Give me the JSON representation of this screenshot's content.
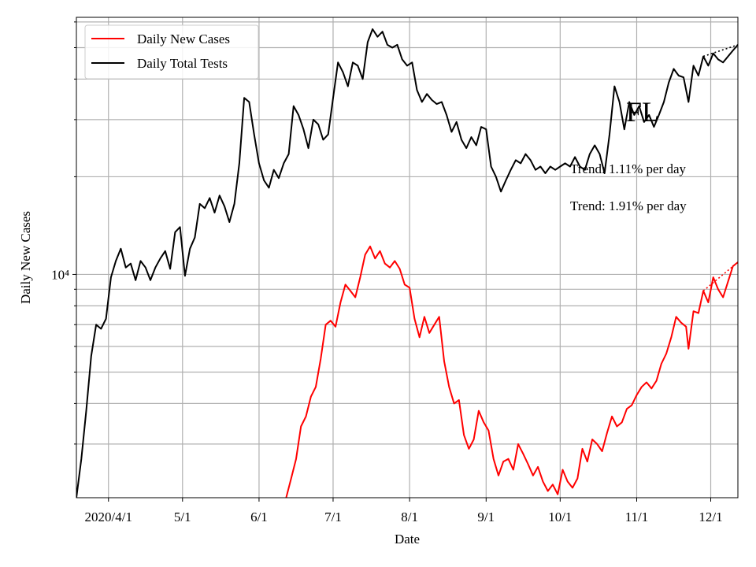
{
  "chart_data": {
    "type": "line",
    "title": "",
    "xlabel": "Date",
    "ylabel": "Daily New Cases",
    "y_scale": "log",
    "y_tick_label": "10⁴",
    "y_tick_value": 10000,
    "xlim": [
      "2020-03-19",
      "2020-12-12"
    ],
    "ylim": [
      2050,
      62000
    ],
    "grid": true,
    "x_ticks": [
      {
        "date": "2020-04-01",
        "label": "2020/4/1"
      },
      {
        "date": "2020-05-01",
        "label": "5/1"
      },
      {
        "date": "2020-06-01",
        "label": "6/1"
      },
      {
        "date": "2020-07-01",
        "label": "7/1"
      },
      {
        "date": "2020-08-01",
        "label": "8/1"
      },
      {
        "date": "2020-09-01",
        "label": "9/1"
      },
      {
        "date": "2020-10-01",
        "label": "10/1"
      },
      {
        "date": "2020-11-01",
        "label": "11/1"
      },
      {
        "date": "2020-12-01",
        "label": "12/1"
      }
    ],
    "legend_position": "top-left",
    "annotations": {
      "state": "FL",
      "trend_tests": "Trend: 1.11% per day",
      "trend_cases": "Trend: 1.91% per day"
    },
    "series": [
      {
        "name": "Daily New Cases",
        "color": "#ff0000",
        "points": [
          [
            "2020-06-12",
            2050
          ],
          [
            "2020-06-14",
            2350
          ],
          [
            "2020-06-16",
            2700
          ],
          [
            "2020-06-18",
            3400
          ],
          [
            "2020-06-20",
            3650
          ],
          [
            "2020-06-22",
            4200
          ],
          [
            "2020-06-24",
            4500
          ],
          [
            "2020-06-26",
            5500
          ],
          [
            "2020-06-28",
            7000
          ],
          [
            "2020-06-30",
            7200
          ],
          [
            "2020-07-02",
            6900
          ],
          [
            "2020-07-04",
            8200
          ],
          [
            "2020-07-06",
            9300
          ],
          [
            "2020-07-08",
            8900
          ],
          [
            "2020-07-10",
            8500
          ],
          [
            "2020-07-12",
            9800
          ],
          [
            "2020-07-14",
            11500
          ],
          [
            "2020-07-16",
            12200
          ],
          [
            "2020-07-18",
            11200
          ],
          [
            "2020-07-20",
            11800
          ],
          [
            "2020-07-22",
            10800
          ],
          [
            "2020-07-24",
            10500
          ],
          [
            "2020-07-26",
            11000
          ],
          [
            "2020-07-28",
            10400
          ],
          [
            "2020-07-30",
            9300
          ],
          [
            "2020-08-01",
            9100
          ],
          [
            "2020-08-03",
            7300
          ],
          [
            "2020-08-05",
            6400
          ],
          [
            "2020-08-07",
            7400
          ],
          [
            "2020-08-09",
            6600
          ],
          [
            "2020-08-11",
            7000
          ],
          [
            "2020-08-13",
            7400
          ],
          [
            "2020-08-15",
            5400
          ],
          [
            "2020-08-17",
            4500
          ],
          [
            "2020-08-19",
            4000
          ],
          [
            "2020-08-21",
            4100
          ],
          [
            "2020-08-23",
            3200
          ],
          [
            "2020-08-25",
            2900
          ],
          [
            "2020-08-27",
            3100
          ],
          [
            "2020-08-29",
            3800
          ],
          [
            "2020-08-31",
            3500
          ],
          [
            "2020-09-02",
            3300
          ],
          [
            "2020-09-04",
            2700
          ],
          [
            "2020-09-06",
            2400
          ],
          [
            "2020-09-08",
            2650
          ],
          [
            "2020-09-10",
            2700
          ],
          [
            "2020-09-12",
            2500
          ],
          [
            "2020-09-14",
            3000
          ],
          [
            "2020-09-16",
            2800
          ],
          [
            "2020-09-18",
            2600
          ],
          [
            "2020-09-20",
            2400
          ],
          [
            "2020-09-22",
            2550
          ],
          [
            "2020-09-24",
            2300
          ],
          [
            "2020-09-26",
            2150
          ],
          [
            "2020-09-28",
            2250
          ],
          [
            "2020-09-30",
            2100
          ],
          [
            "2020-10-02",
            2500
          ],
          [
            "2020-10-04",
            2300
          ],
          [
            "2020-10-06",
            2200
          ],
          [
            "2020-10-08",
            2350
          ],
          [
            "2020-10-10",
            2900
          ],
          [
            "2020-10-12",
            2650
          ],
          [
            "2020-10-14",
            3100
          ],
          [
            "2020-10-16",
            3000
          ],
          [
            "2020-10-18",
            2850
          ],
          [
            "2020-10-20",
            3250
          ],
          [
            "2020-10-22",
            3650
          ],
          [
            "2020-10-24",
            3400
          ],
          [
            "2020-10-26",
            3500
          ],
          [
            "2020-10-28",
            3850
          ],
          [
            "2020-10-30",
            3950
          ],
          [
            "2020-11-01",
            4250
          ],
          [
            "2020-11-03",
            4500
          ],
          [
            "2020-11-05",
            4650
          ],
          [
            "2020-11-07",
            4450
          ],
          [
            "2020-11-09",
            4700
          ],
          [
            "2020-11-11",
            5300
          ],
          [
            "2020-11-13",
            5700
          ],
          [
            "2020-11-15",
            6400
          ],
          [
            "2020-11-17",
            7400
          ],
          [
            "2020-11-19",
            7100
          ],
          [
            "2020-11-21",
            6900
          ],
          [
            "2020-11-22",
            5900
          ],
          [
            "2020-11-24",
            7700
          ],
          [
            "2020-11-26",
            7600
          ],
          [
            "2020-11-28",
            8900
          ],
          [
            "2020-11-30",
            8200
          ],
          [
            "2020-12-02",
            9800
          ],
          [
            "2020-12-04",
            9000
          ],
          [
            "2020-12-06",
            8500
          ],
          [
            "2020-12-08",
            9500
          ],
          [
            "2020-12-10",
            10600
          ],
          [
            "2020-12-12",
            10900
          ]
        ]
      },
      {
        "name": "Daily Total Tests",
        "color": "#000000",
        "points": [
          [
            "2020-03-19",
            2050
          ],
          [
            "2020-03-21",
            2700
          ],
          [
            "2020-03-23",
            3800
          ],
          [
            "2020-03-25",
            5600
          ],
          [
            "2020-03-27",
            7000
          ],
          [
            "2020-03-29",
            6800
          ],
          [
            "2020-03-31",
            7300
          ],
          [
            "2020-04-02",
            9800
          ],
          [
            "2020-04-04",
            11000
          ],
          [
            "2020-04-06",
            12000
          ],
          [
            "2020-04-08",
            10500
          ],
          [
            "2020-04-10",
            10800
          ],
          [
            "2020-04-12",
            9600
          ],
          [
            "2020-04-14",
            11000
          ],
          [
            "2020-04-16",
            10500
          ],
          [
            "2020-04-18",
            9600
          ],
          [
            "2020-04-20",
            10500
          ],
          [
            "2020-04-22",
            11200
          ],
          [
            "2020-04-24",
            11800
          ],
          [
            "2020-04-26",
            10400
          ],
          [
            "2020-04-28",
            13500
          ],
          [
            "2020-04-30",
            14000
          ],
          [
            "2020-05-02",
            9900
          ],
          [
            "2020-05-04",
            12000
          ],
          [
            "2020-05-06",
            13000
          ],
          [
            "2020-05-08",
            16500
          ],
          [
            "2020-05-10",
            16000
          ],
          [
            "2020-05-12",
            17200
          ],
          [
            "2020-05-14",
            15500
          ],
          [
            "2020-05-16",
            17500
          ],
          [
            "2020-05-18",
            16200
          ],
          [
            "2020-05-20",
            14500
          ],
          [
            "2020-05-22",
            16500
          ],
          [
            "2020-05-24",
            22000
          ],
          [
            "2020-05-26",
            35000
          ],
          [
            "2020-05-28",
            34000
          ],
          [
            "2020-05-30",
            27000
          ],
          [
            "2020-06-01",
            22000
          ],
          [
            "2020-06-03",
            19500
          ],
          [
            "2020-06-05",
            18500
          ],
          [
            "2020-06-07",
            21000
          ],
          [
            "2020-06-09",
            19800
          ],
          [
            "2020-06-11",
            22000
          ],
          [
            "2020-06-13",
            23500
          ],
          [
            "2020-06-15",
            33000
          ],
          [
            "2020-06-17",
            31000
          ],
          [
            "2020-06-19",
            28000
          ],
          [
            "2020-06-21",
            24500
          ],
          [
            "2020-06-23",
            30000
          ],
          [
            "2020-06-25",
            29000
          ],
          [
            "2020-06-27",
            26000
          ],
          [
            "2020-06-29",
            27000
          ],
          [
            "2020-07-01",
            35000
          ],
          [
            "2020-07-03",
            45000
          ],
          [
            "2020-07-05",
            42000
          ],
          [
            "2020-07-07",
            38000
          ],
          [
            "2020-07-09",
            45000
          ],
          [
            "2020-07-11",
            44000
          ],
          [
            "2020-07-13",
            40000
          ],
          [
            "2020-07-15",
            52000
          ],
          [
            "2020-07-17",
            57000
          ],
          [
            "2020-07-19",
            54000
          ],
          [
            "2020-07-21",
            56000
          ],
          [
            "2020-07-23",
            51000
          ],
          [
            "2020-07-25",
            50000
          ],
          [
            "2020-07-27",
            51000
          ],
          [
            "2020-07-29",
            46000
          ],
          [
            "2020-07-31",
            44000
          ],
          [
            "2020-08-02",
            45000
          ],
          [
            "2020-08-04",
            37000
          ],
          [
            "2020-08-06",
            34000
          ],
          [
            "2020-08-08",
            36000
          ],
          [
            "2020-08-10",
            34500
          ],
          [
            "2020-08-12",
            33500
          ],
          [
            "2020-08-14",
            34000
          ],
          [
            "2020-08-16",
            31000
          ],
          [
            "2020-08-18",
            27500
          ],
          [
            "2020-08-20",
            29500
          ],
          [
            "2020-08-22",
            26000
          ],
          [
            "2020-08-24",
            24500
          ],
          [
            "2020-08-26",
            26500
          ],
          [
            "2020-08-28",
            25000
          ],
          [
            "2020-08-30",
            28500
          ],
          [
            "2020-09-01",
            28000
          ],
          [
            "2020-09-03",
            21500
          ],
          [
            "2020-09-05",
            20000
          ],
          [
            "2020-09-07",
            18000
          ],
          [
            "2020-09-09",
            19500
          ],
          [
            "2020-09-11",
            21000
          ],
          [
            "2020-09-13",
            22500
          ],
          [
            "2020-09-15",
            22000
          ],
          [
            "2020-09-17",
            23500
          ],
          [
            "2020-09-19",
            22500
          ],
          [
            "2020-09-21",
            21000
          ],
          [
            "2020-09-23",
            21500
          ],
          [
            "2020-09-25",
            20500
          ],
          [
            "2020-09-27",
            21500
          ],
          [
            "2020-09-29",
            21000
          ],
          [
            "2020-10-01",
            21500
          ],
          [
            "2020-10-03",
            22000
          ],
          [
            "2020-10-05",
            21500
          ],
          [
            "2020-10-07",
            23000
          ],
          [
            "2020-10-09",
            21500
          ],
          [
            "2020-10-11",
            21000
          ],
          [
            "2020-10-13",
            23500
          ],
          [
            "2020-10-15",
            25000
          ],
          [
            "2020-10-17",
            23500
          ],
          [
            "2020-10-19",
            20500
          ],
          [
            "2020-10-21",
            27000
          ],
          [
            "2020-10-23",
            38000
          ],
          [
            "2020-10-25",
            34000
          ],
          [
            "2020-10-27",
            28000
          ],
          [
            "2020-10-29",
            34000
          ],
          [
            "2020-10-31",
            31000
          ],
          [
            "2020-11-02",
            33000
          ],
          [
            "2020-11-04",
            29500
          ],
          [
            "2020-11-06",
            31000
          ],
          [
            "2020-11-08",
            28500
          ],
          [
            "2020-11-10",
            31000
          ],
          [
            "2020-11-12",
            34000
          ],
          [
            "2020-11-14",
            39000
          ],
          [
            "2020-11-16",
            43000
          ],
          [
            "2020-11-18",
            41000
          ],
          [
            "2020-11-20",
            40500
          ],
          [
            "2020-11-22",
            34000
          ],
          [
            "2020-11-24",
            44000
          ],
          [
            "2020-11-26",
            41000
          ],
          [
            "2020-11-28",
            47000
          ],
          [
            "2020-11-30",
            44000
          ],
          [
            "2020-12-02",
            48000
          ],
          [
            "2020-12-04",
            46000
          ],
          [
            "2020-12-06",
            45000
          ],
          [
            "2020-12-08",
            47000
          ],
          [
            "2020-12-10",
            49000
          ],
          [
            "2020-12-12",
            51000
          ]
        ]
      }
    ]
  }
}
